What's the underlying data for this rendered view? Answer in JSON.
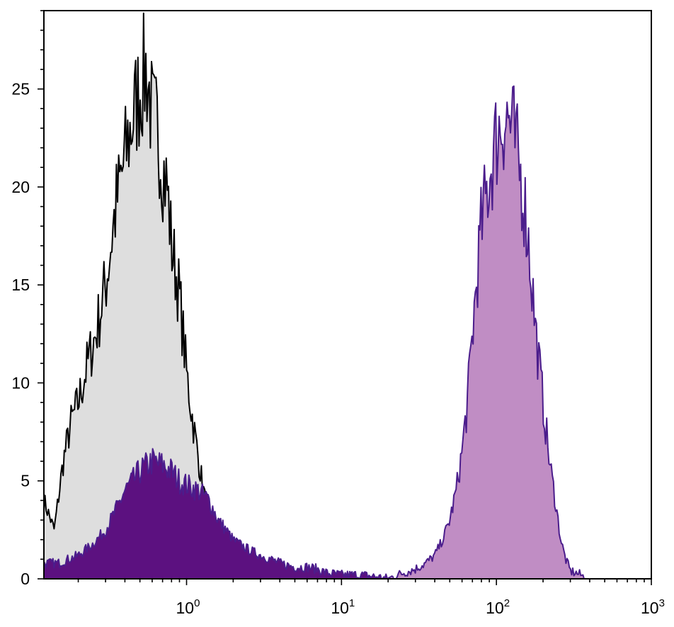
{
  "chart_data": {
    "type": "area",
    "x_scale": "log",
    "xlim": [
      0.12,
      1000
    ],
    "ylim": [
      0,
      29
    ],
    "grid": false,
    "legend": "none",
    "title": "",
    "xlabel": "",
    "ylabel": "",
    "yticks": [
      {
        "value": 0,
        "label": "0"
      },
      {
        "value": 5,
        "label": "5"
      },
      {
        "value": 10,
        "label": "10"
      },
      {
        "value": 15,
        "label": "15"
      },
      {
        "value": 20,
        "label": "20"
      },
      {
        "value": 25,
        "label": "25"
      }
    ],
    "xticks": [
      {
        "value": 1,
        "base": "10",
        "exp": "0"
      },
      {
        "value": 10,
        "base": "10",
        "exp": "1"
      },
      {
        "value": 100,
        "base": "10",
        "exp": "2"
      },
      {
        "value": 1000,
        "base": "10",
        "exp": "3"
      }
    ],
    "series": [
      {
        "fill": "#dedede",
        "stroke": "#000000",
        "points": [
          [
            0.12,
            4.0
          ],
          [
            0.14,
            2.5
          ],
          [
            0.16,
            6.0
          ],
          [
            0.18,
            8.0
          ],
          [
            0.2,
            9.0
          ],
          [
            0.23,
            11.0
          ],
          [
            0.26,
            12.5
          ],
          [
            0.3,
            15.0
          ],
          [
            0.35,
            19.0
          ],
          [
            0.4,
            21.5
          ],
          [
            0.45,
            23.5
          ],
          [
            0.5,
            25.0
          ],
          [
            0.55,
            26.0
          ],
          [
            0.6,
            23.5
          ],
          [
            0.65,
            23.0
          ],
          [
            0.7,
            21.0
          ],
          [
            0.75,
            20.0
          ],
          [
            0.8,
            17.0
          ],
          [
            0.9,
            14.5
          ],
          [
            1.0,
            10.5
          ],
          [
            1.1,
            8.0
          ],
          [
            1.2,
            6.0
          ],
          [
            1.35,
            3.5
          ],
          [
            1.5,
            2.5
          ],
          [
            1.7,
            2.0
          ],
          [
            2.0,
            1.5
          ],
          [
            2.5,
            1.0
          ],
          [
            3.0,
            0.3
          ],
          [
            3.2,
            0
          ]
        ]
      },
      {
        "fill": "#5c1180",
        "stroke": "#4b1d8c",
        "points": [
          [
            0.12,
            0.8
          ],
          [
            0.15,
            0.8
          ],
          [
            0.2,
            1.2
          ],
          [
            0.25,
            1.8
          ],
          [
            0.3,
            2.5
          ],
          [
            0.35,
            3.5
          ],
          [
            0.4,
            4.5
          ],
          [
            0.45,
            5.0
          ],
          [
            0.5,
            5.5
          ],
          [
            0.6,
            6.0
          ],
          [
            0.7,
            5.8
          ],
          [
            0.8,
            5.5
          ],
          [
            0.9,
            5.0
          ],
          [
            1.0,
            4.8
          ],
          [
            1.2,
            4.5
          ],
          [
            1.4,
            4.0
          ],
          [
            1.6,
            3.0
          ],
          [
            1.8,
            2.5
          ],
          [
            2.0,
            2.0
          ],
          [
            2.5,
            1.5
          ],
          [
            3.0,
            1.2
          ],
          [
            3.5,
            1.0
          ],
          [
            4.0,
            0.8
          ],
          [
            5.0,
            0.6
          ],
          [
            6.0,
            0.6
          ],
          [
            7.0,
            0.5
          ],
          [
            8.0,
            0.3
          ],
          [
            10.0,
            0.2
          ],
          [
            13.0,
            0.2
          ],
          [
            17.0,
            0.1
          ],
          [
            20.0,
            0.0
          ]
        ]
      },
      {
        "fill": "#c08dc4",
        "stroke": "#4b1d8c",
        "points": [
          [
            20.0,
            0.0
          ],
          [
            25.0,
            0.3
          ],
          [
            30.0,
            0.5
          ],
          [
            35.0,
            0.8
          ],
          [
            40.0,
            1.2
          ],
          [
            45.0,
            2.0
          ],
          [
            50.0,
            3.0
          ],
          [
            55.0,
            4.5
          ],
          [
            60.0,
            6.5
          ],
          [
            65.0,
            9.0
          ],
          [
            70.0,
            12.5
          ],
          [
            75.0,
            15.5
          ],
          [
            80.0,
            18.0
          ],
          [
            90.0,
            20.5
          ],
          [
            100.0,
            22.5
          ],
          [
            110.0,
            23.5
          ],
          [
            120.0,
            23.5
          ],
          [
            130.0,
            22.5
          ],
          [
            140.0,
            21.0
          ],
          [
            150.0,
            19.5
          ],
          [
            160.0,
            17.5
          ],
          [
            170.0,
            15.0
          ],
          [
            180.0,
            12.5
          ],
          [
            200.0,
            9.0
          ],
          [
            220.0,
            6.0
          ],
          [
            240.0,
            4.0
          ],
          [
            260.0,
            2.0
          ],
          [
            280.0,
            1.0
          ],
          [
            300.0,
            0.4
          ],
          [
            350.0,
            0.2
          ],
          [
            380.0,
            0.0
          ]
        ]
      }
    ]
  }
}
